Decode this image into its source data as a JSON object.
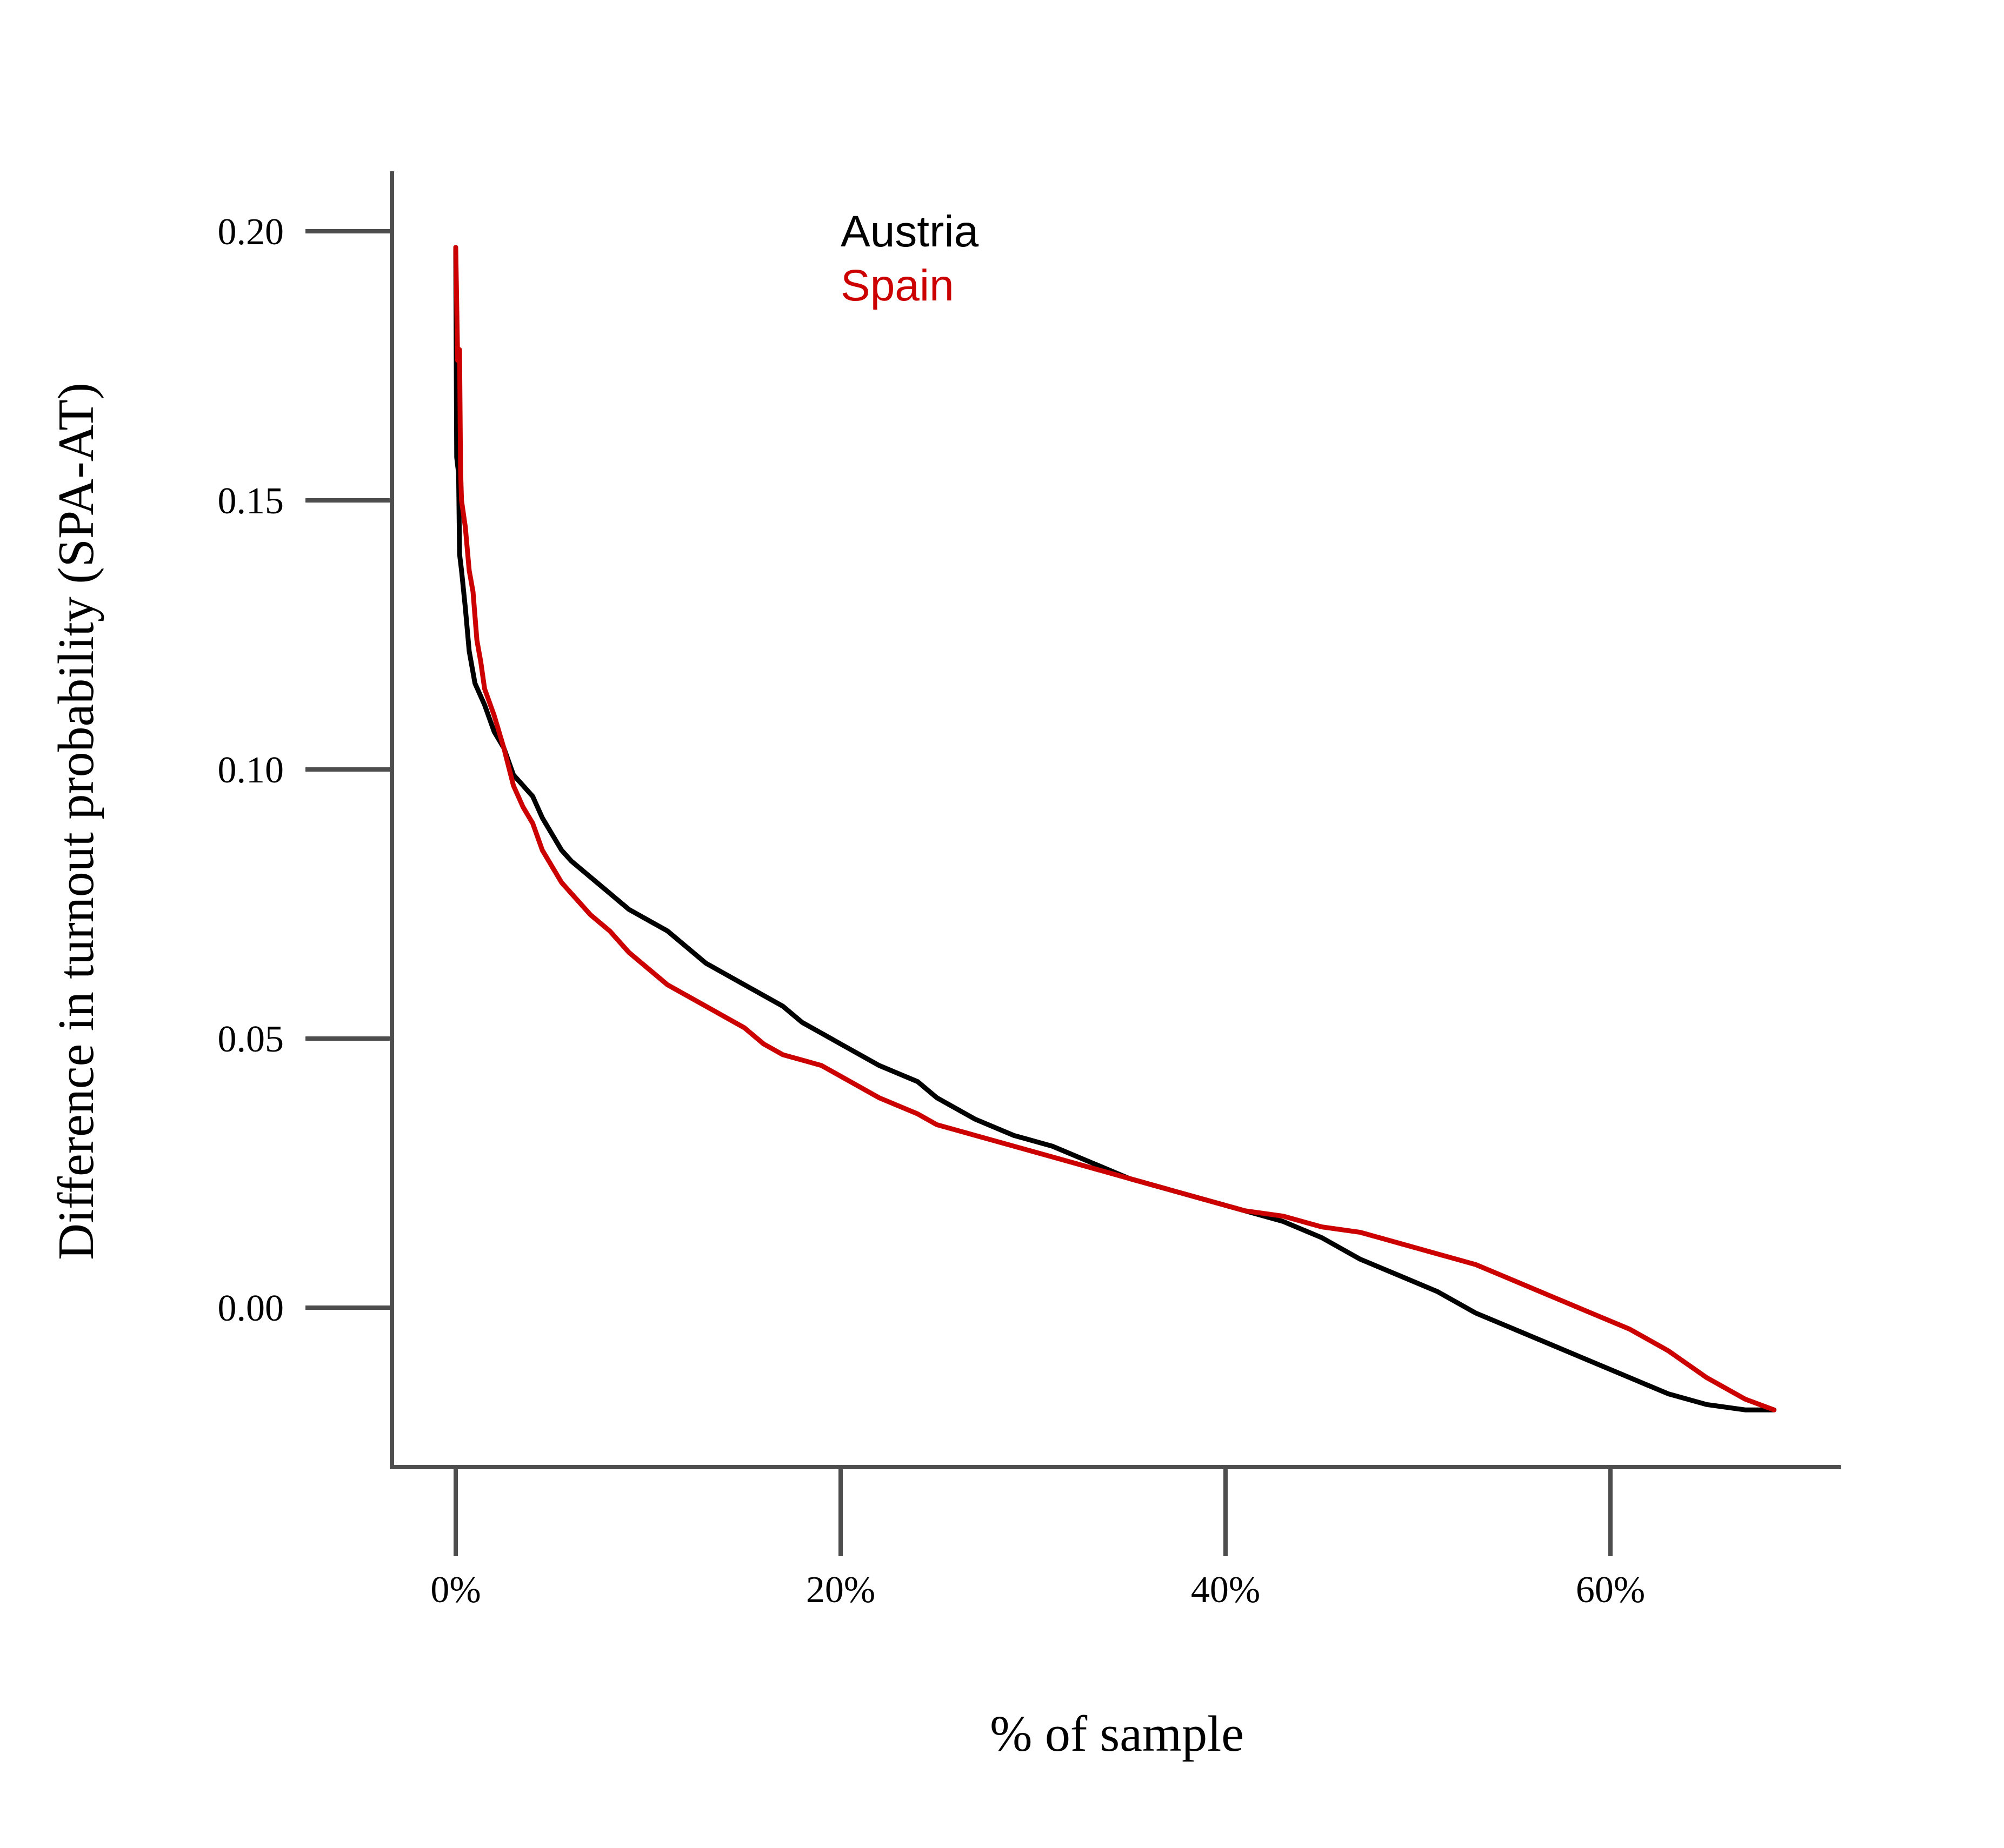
{
  "chart_data": {
    "type": "line",
    "title": "",
    "xlabel": "% of sample",
    "ylabel": "Difference in turnout probability (SPA-AT)",
    "xlim": [
      -1.7,
      70
    ],
    "ylim": [
      -0.03,
      0.211
    ],
    "x_ticks": [
      0,
      20,
      40,
      60
    ],
    "x_tick_labels": [
      "0%",
      "20%",
      "40%",
      "60%"
    ],
    "y_ticks": [
      0.0,
      0.05,
      0.1,
      0.15,
      0.2
    ],
    "y_tick_labels": [
      "0.00",
      "0.05",
      "0.10",
      "0.15",
      "0.20"
    ],
    "grid": false,
    "legend_position": "top-center",
    "series": [
      {
        "name": "Austria",
        "color": "#000000",
        "x": [
          0,
          0.05,
          0.15,
          0.2,
          0.3,
          0.5,
          0.7,
          1.0,
          1.5,
          2.0,
          2.5,
          3.0,
          3.5,
          4.0,
          4.5,
          5.0,
          5.5,
          6.0,
          7.0,
          8.0,
          9.0,
          10.0,
          11.0,
          12.0,
          13.0,
          14.0,
          15.0,
          16.0,
          17.0,
          18.0,
          19.0,
          20.0,
          22.0,
          24.0,
          25.0,
          27.0,
          29.0,
          31.0,
          33.0,
          35.0,
          37.0,
          39.0,
          41.0,
          43.0,
          45.0,
          47.0,
          49.0,
          51.0,
          53.0,
          55.0,
          57.0,
          59.0,
          61.0,
          63.0,
          65.0,
          67.0,
          68.5
        ],
        "y": [
          0.197,
          0.158,
          0.155,
          0.14,
          0.137,
          0.13,
          0.122,
          0.116,
          0.112,
          0.107,
          0.104,
          0.099,
          0.097,
          0.095,
          0.091,
          0.088,
          0.085,
          0.083,
          0.08,
          0.077,
          0.074,
          0.072,
          0.07,
          0.067,
          0.064,
          0.062,
          0.06,
          0.058,
          0.056,
          0.053,
          0.051,
          0.049,
          0.045,
          0.042,
          0.039,
          0.035,
          0.032,
          0.03,
          0.027,
          0.024,
          0.022,
          0.02,
          0.018,
          0.016,
          0.013,
          0.009,
          0.006,
          0.003,
          -0.001,
          -0.004,
          -0.007,
          -0.01,
          -0.013,
          -0.016,
          -0.018,
          -0.019,
          -0.019
        ]
      },
      {
        "name": "Spain",
        "color": "#cc0000",
        "x": [
          0,
          0.1,
          0.2,
          0.25,
          0.3,
          0.5,
          0.7,
          0.9,
          1.1,
          1.3,
          1.5,
          2.0,
          2.5,
          3.0,
          3.5,
          4.0,
          4.5,
          5.0,
          5.5,
          6.0,
          7.0,
          8.0,
          9.0,
          10.0,
          11.0,
          12.0,
          13.0,
          14.0,
          15.0,
          16.0,
          17.0,
          18.0,
          19.0,
          20.0,
          22.0,
          24.0,
          25.0,
          27.0,
          29.0,
          31.0,
          33.0,
          35.0,
          37.0,
          39.0,
          41.0,
          43.0,
          45.0,
          47.0,
          49.0,
          51.0,
          53.0,
          55.0,
          57.0,
          59.0,
          61.0,
          63.0,
          65.0,
          67.0,
          68.5
        ],
        "y": [
          0.197,
          0.176,
          0.178,
          0.156,
          0.15,
          0.145,
          0.137,
          0.133,
          0.124,
          0.12,
          0.115,
          0.11,
          0.104,
          0.097,
          0.093,
          0.09,
          0.085,
          0.082,
          0.079,
          0.077,
          0.073,
          0.07,
          0.066,
          0.063,
          0.06,
          0.058,
          0.056,
          0.054,
          0.052,
          0.049,
          0.047,
          0.046,
          0.045,
          0.043,
          0.039,
          0.036,
          0.034,
          0.032,
          0.03,
          0.028,
          0.026,
          0.024,
          0.022,
          0.02,
          0.018,
          0.017,
          0.015,
          0.014,
          0.012,
          0.01,
          0.008,
          0.005,
          0.002,
          -0.001,
          -0.004,
          -0.008,
          -0.013,
          -0.017,
          -0.019
        ]
      }
    ]
  }
}
